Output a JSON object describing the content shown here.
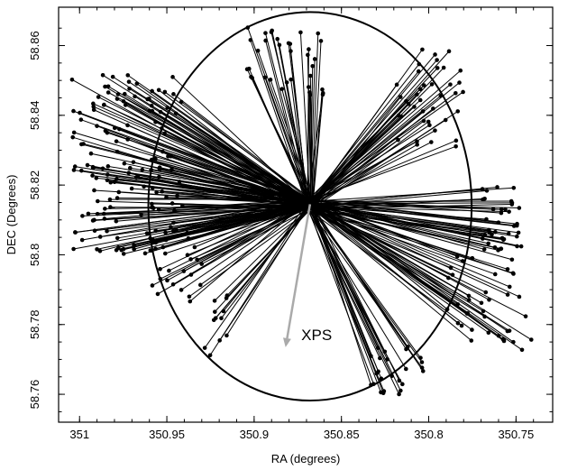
{
  "chart_data": {
    "type": "scatter",
    "title": "",
    "xlabel": "RA (degrees)",
    "ylabel": "DEC (Degrees)",
    "xlim": [
      351.012,
      350.729
    ],
    "ylim": [
      58.752,
      58.871
    ],
    "x_reversed": true,
    "grid": false,
    "x_ticks": [
      {
        "value": 351.0,
        "label": "351"
      },
      {
        "value": 350.95,
        "label": "350.95"
      },
      {
        "value": 350.9,
        "label": "350.9"
      },
      {
        "value": 350.85,
        "label": "350.85"
      },
      {
        "value": 350.8,
        "label": "350.8"
      },
      {
        "value": 350.75,
        "label": "350.75"
      }
    ],
    "y_ticks": [
      {
        "value": 58.76,
        "label": "58.76"
      },
      {
        "value": 58.78,
        "label": "58.78"
      },
      {
        "value": 58.8,
        "label": "58.8"
      },
      {
        "value": 58.82,
        "label": "58.82"
      },
      {
        "value": 58.84,
        "label": "58.84"
      },
      {
        "value": 58.86,
        "label": "58.86"
      }
    ],
    "center": {
      "x": 350.868,
      "y": 58.8145
    },
    "circle": {
      "cx": 350.868,
      "cy": 58.8139,
      "radius_x": 0.0926,
      "radius_y": 0.0557
    },
    "vector_spread": {
      "dx": 0.004,
      "dy": 0.003
    },
    "vector_groups": [
      {
        "name": "",
        "x_range": [
          350.94,
          351.005
        ],
        "y_range": [
          58.8,
          58.852
        ],
        "count": 150
      },
      {
        "name": "",
        "x_range": [
          350.93,
          350.96
        ],
        "y_range": [
          58.786,
          58.81
        ],
        "count": 30
      },
      {
        "name": "",
        "x_range": [
          350.915,
          350.93
        ],
        "y_range": [
          58.77,
          58.79
        ],
        "count": 12
      },
      {
        "name": "",
        "x_range": [
          350.86,
          350.905
        ],
        "y_range": [
          58.845,
          58.866
        ],
        "count": 35
      },
      {
        "name": "",
        "x_range": [
          350.78,
          350.82
        ],
        "y_range": [
          58.83,
          58.86
        ],
        "count": 40
      },
      {
        "name": "",
        "x_range": [
          350.745,
          350.77
        ],
        "y_range": [
          58.8,
          58.82
        ],
        "count": 40
      },
      {
        "name": "",
        "x_range": [
          350.75,
          350.79
        ],
        "y_range": [
          58.775,
          58.8
        ],
        "count": 30
      },
      {
        "name": "",
        "x_range": [
          350.8,
          350.835
        ],
        "y_range": [
          58.76,
          58.775
        ],
        "count": 25
      },
      {
        "name": "",
        "x_range": [
          350.735,
          350.77
        ],
        "y_range": [
          58.77,
          58.79
        ],
        "count": 10
      }
    ],
    "annotation": {
      "text": "XPS",
      "arrow_from": {
        "x": 350.868,
        "y": 58.8145
      },
      "arrow_to": {
        "x": 350.882,
        "y": 58.7735
      },
      "text_at": {
        "x": 350.873,
        "y": 58.7755
      },
      "color": "#aaaaaa"
    }
  }
}
